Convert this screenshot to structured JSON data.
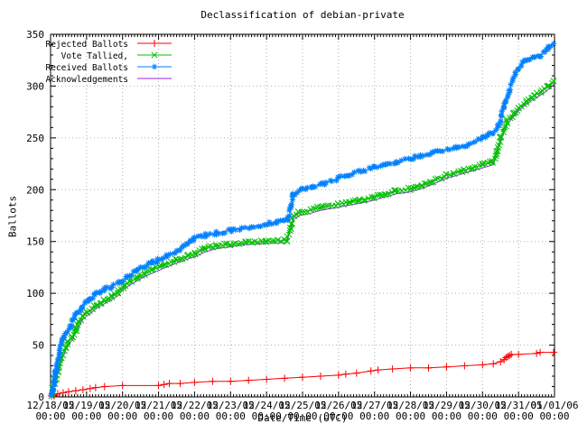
{
  "title": "Declassification of debian-private",
  "axes": {
    "x_label": "Date/Time (UTC)",
    "y_label": "Ballots",
    "y_ticks": [
      0,
      50,
      100,
      150,
      200,
      250,
      300,
      350
    ],
    "x_tick_dates": [
      "12/18/05",
      "12/19/05",
      "12/20/05",
      "12/21/05",
      "12/22/05",
      "12/23/05",
      "12/24/05",
      "12/25/05",
      "12/26/05",
      "12/27/05",
      "12/28/05",
      "12/29/05",
      "12/30/05",
      "12/31/05",
      "01/01/06"
    ],
    "x_tick_time": "00:00"
  },
  "colors": {
    "rejected": "#ff0000",
    "tallied": "#00c000",
    "received": "#0080ff",
    "acknowledgements": "#a020f0",
    "grid": "#b0b0b0",
    "border": "#000000"
  },
  "chart_data": {
    "type": "line",
    "title": "Declassification of debian-private",
    "xlabel": "Date/Time (UTC)",
    "ylabel": "Ballots",
    "ylim": [
      0,
      350
    ],
    "x_span_days": 14,
    "x_start": "12/18/05 00:00",
    "x_end": "01/01/06 00:00",
    "grid": true,
    "legend_position": "top-left",
    "x_unit": "days since 12/18/05 00:00 UTC",
    "series": [
      {
        "name": "Rejected Ballots",
        "key": "rejected-ballots",
        "color": "#ff0000",
        "marker": "plus",
        "density": "points",
        "points": [
          [
            0,
            0
          ],
          [
            0.1,
            1
          ],
          [
            0.2,
            3
          ],
          [
            0.35,
            4
          ],
          [
            0.5,
            5
          ],
          [
            0.7,
            6
          ],
          [
            0.9,
            7
          ],
          [
            1.1,
            8
          ],
          [
            1.25,
            9
          ],
          [
            1.5,
            10
          ],
          [
            2,
            11
          ],
          [
            3,
            11
          ],
          [
            3.15,
            12
          ],
          [
            3.3,
            13
          ],
          [
            3.6,
            13
          ],
          [
            4,
            14
          ],
          [
            4.5,
            15
          ],
          [
            5,
            15
          ],
          [
            5.5,
            16
          ],
          [
            6,
            17
          ],
          [
            6.5,
            18
          ],
          [
            7,
            19
          ],
          [
            7.5,
            20
          ],
          [
            8,
            21
          ],
          [
            8.2,
            22
          ],
          [
            8.5,
            23
          ],
          [
            8.9,
            25
          ],
          [
            9.1,
            26
          ],
          [
            9.5,
            27
          ],
          [
            10,
            28
          ],
          [
            10.5,
            28
          ],
          [
            11,
            29
          ],
          [
            11.5,
            30
          ],
          [
            12,
            31
          ],
          [
            12.3,
            32
          ],
          [
            12.5,
            34
          ],
          [
            12.6,
            36
          ],
          [
            12.65,
            38
          ],
          [
            12.7,
            39
          ],
          [
            12.75,
            40
          ],
          [
            12.8,
            41
          ],
          [
            13,
            41
          ],
          [
            13.5,
            42
          ],
          [
            13.6,
            43
          ],
          [
            14,
            43
          ]
        ]
      },
      {
        "name": "Vote Tallied,",
        "key": "vote-tallied",
        "color": "#00c000",
        "marker": "cross",
        "density": "dense",
        "points": [
          [
            0,
            0
          ],
          [
            0.07,
            8
          ],
          [
            0.15,
            18
          ],
          [
            0.22,
            28
          ],
          [
            0.3,
            38
          ],
          [
            0.4,
            47
          ],
          [
            0.5,
            53
          ],
          [
            0.6,
            58
          ],
          [
            0.7,
            65
          ],
          [
            0.8,
            72
          ],
          [
            0.9,
            78
          ],
          [
            1,
            81
          ],
          [
            1.15,
            85
          ],
          [
            1.3,
            89
          ],
          [
            1.5,
            93
          ],
          [
            1.7,
            97
          ],
          [
            1.85,
            100
          ],
          [
            2,
            106
          ],
          [
            2.2,
            111
          ],
          [
            2.4,
            115
          ],
          [
            2.6,
            119
          ],
          [
            2.8,
            122
          ],
          [
            3,
            125
          ],
          [
            3.2,
            128
          ],
          [
            3.5,
            132
          ],
          [
            3.8,
            136
          ],
          [
            4,
            138
          ],
          [
            4.3,
            143
          ],
          [
            4.6,
            146
          ],
          [
            5,
            147
          ],
          [
            5.4,
            149
          ],
          [
            6,
            150
          ],
          [
            6.55,
            151
          ],
          [
            6.65,
            163
          ],
          [
            6.75,
            174
          ],
          [
            6.9,
            178
          ],
          [
            7.2,
            180
          ],
          [
            7.5,
            183
          ],
          [
            8,
            186
          ],
          [
            8.3,
            188
          ],
          [
            8.6,
            190
          ],
          [
            9,
            193
          ],
          [
            9.3,
            196
          ],
          [
            9.6,
            199
          ],
          [
            10,
            201
          ],
          [
            10.3,
            204
          ],
          [
            10.6,
            208
          ],
          [
            11,
            214
          ],
          [
            11.4,
            218
          ],
          [
            11.7,
            221
          ],
          [
            12,
            224
          ],
          [
            12.3,
            227
          ],
          [
            12.4,
            238
          ],
          [
            12.5,
            250
          ],
          [
            12.7,
            267
          ],
          [
            12.85,
            273
          ],
          [
            13,
            279
          ],
          [
            13.2,
            285
          ],
          [
            13.4,
            290
          ],
          [
            13.6,
            294
          ],
          [
            13.8,
            299
          ],
          [
            14,
            305
          ]
        ]
      },
      {
        "name": "Received Ballots",
        "key": "received-ballots",
        "color": "#0080ff",
        "marker": "star",
        "density": "dense",
        "points": [
          [
            0,
            0
          ],
          [
            0.05,
            6
          ],
          [
            0.1,
            14
          ],
          [
            0.15,
            24
          ],
          [
            0.2,
            34
          ],
          [
            0.25,
            44
          ],
          [
            0.3,
            52
          ],
          [
            0.35,
            57
          ],
          [
            0.45,
            62
          ],
          [
            0.55,
            68
          ],
          [
            0.65,
            75
          ],
          [
            0.75,
            81
          ],
          [
            0.85,
            86
          ],
          [
            1,
            91
          ],
          [
            1.1,
            95
          ],
          [
            1.2,
            98
          ],
          [
            1.35,
            101
          ],
          [
            1.5,
            104
          ],
          [
            1.7,
            107
          ],
          [
            1.9,
            110
          ],
          [
            2,
            112
          ],
          [
            2.2,
            117
          ],
          [
            2.4,
            122
          ],
          [
            2.6,
            126
          ],
          [
            2.8,
            129
          ],
          [
            3,
            132
          ],
          [
            3.2,
            136
          ],
          [
            3.5,
            141
          ],
          [
            3.7,
            146
          ],
          [
            3.9,
            150
          ],
          [
            4,
            153
          ],
          [
            4.3,
            156
          ],
          [
            4.6,
            158
          ],
          [
            5,
            161
          ],
          [
            5.5,
            164
          ],
          [
            6,
            167
          ],
          [
            6.3,
            169
          ],
          [
            6.6,
            170
          ],
          [
            6.68,
            182
          ],
          [
            6.75,
            195
          ],
          [
            7,
            200
          ],
          [
            7.3,
            203
          ],
          [
            7.6,
            206
          ],
          [
            8,
            211
          ],
          [
            8.3,
            215
          ],
          [
            8.6,
            218
          ],
          [
            9,
            221
          ],
          [
            9.3,
            224
          ],
          [
            9.6,
            226
          ],
          [
            10,
            230
          ],
          [
            10.3,
            233
          ],
          [
            10.6,
            235
          ],
          [
            11,
            239
          ],
          [
            11.3,
            241
          ],
          [
            11.6,
            243
          ],
          [
            12,
            250
          ],
          [
            12.15,
            253
          ],
          [
            12.3,
            255
          ],
          [
            12.45,
            262
          ],
          [
            12.6,
            280
          ],
          [
            12.75,
            295
          ],
          [
            12.9,
            312
          ],
          [
            13.05,
            320
          ],
          [
            13.2,
            324
          ],
          [
            13.4,
            327
          ],
          [
            13.6,
            330
          ],
          [
            13.75,
            334
          ],
          [
            13.85,
            338
          ],
          [
            14,
            342
          ]
        ]
      },
      {
        "name": "Acknowledgements",
        "key": "acknowledgements",
        "color": "#a020f0",
        "marker": "none",
        "density": "line",
        "points": [
          [
            0,
            0
          ],
          [
            0.07,
            6
          ],
          [
            0.15,
            15
          ],
          [
            0.22,
            25
          ],
          [
            0.3,
            35
          ],
          [
            0.4,
            44
          ],
          [
            0.5,
            50
          ],
          [
            0.6,
            55
          ],
          [
            0.7,
            62
          ],
          [
            0.8,
            69
          ],
          [
            0.9,
            75
          ],
          [
            1,
            78
          ],
          [
            1.15,
            82
          ],
          [
            1.3,
            86
          ],
          [
            1.5,
            90
          ],
          [
            1.7,
            94
          ],
          [
            1.85,
            97
          ],
          [
            2,
            103
          ],
          [
            2.2,
            108
          ],
          [
            2.4,
            112
          ],
          [
            2.6,
            116
          ],
          [
            2.8,
            119
          ],
          [
            3,
            122
          ],
          [
            3.2,
            125
          ],
          [
            3.5,
            129
          ],
          [
            3.8,
            133
          ],
          [
            4,
            135
          ],
          [
            4.3,
            140
          ],
          [
            4.6,
            143
          ],
          [
            5,
            145
          ],
          [
            5.4,
            147
          ],
          [
            6,
            148
          ],
          [
            6.55,
            149
          ],
          [
            6.65,
            160
          ],
          [
            6.75,
            171
          ],
          [
            6.9,
            175
          ],
          [
            7.2,
            177
          ],
          [
            7.5,
            180
          ],
          [
            8,
            183
          ],
          [
            8.3,
            185
          ],
          [
            8.6,
            187
          ],
          [
            9,
            190
          ],
          [
            9.3,
            193
          ],
          [
            9.6,
            196
          ],
          [
            10,
            198
          ],
          [
            10.3,
            201
          ],
          [
            10.6,
            205
          ],
          [
            11,
            211
          ],
          [
            11.4,
            215
          ],
          [
            11.7,
            218
          ],
          [
            12,
            221
          ],
          [
            12.3,
            224
          ],
          [
            12.4,
            235
          ],
          [
            12.5,
            247
          ],
          [
            12.7,
            264
          ],
          [
            12.85,
            270
          ],
          [
            13,
            276
          ],
          [
            13.2,
            282
          ],
          [
            13.4,
            287
          ],
          [
            13.6,
            291
          ],
          [
            13.8,
            296
          ],
          [
            14,
            302
          ]
        ]
      }
    ]
  }
}
